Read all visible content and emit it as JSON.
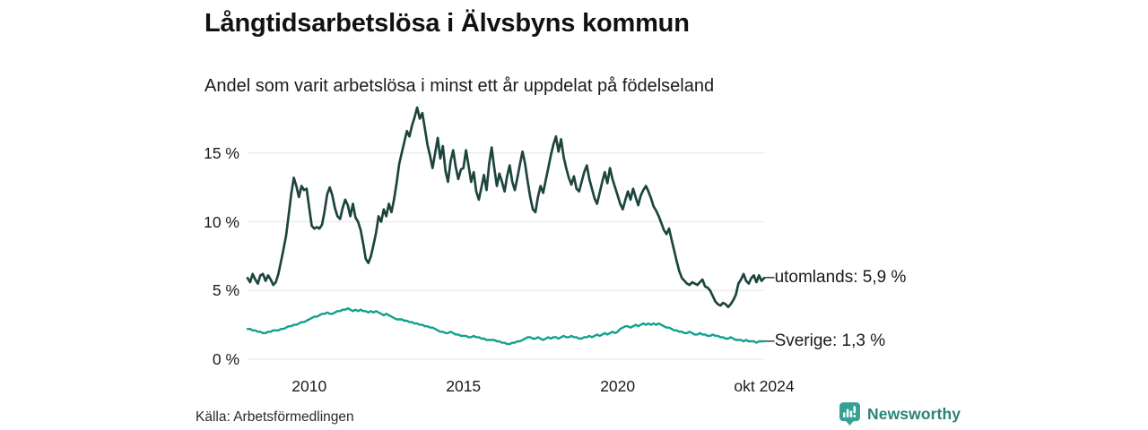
{
  "header": {
    "title": "Långtidsarbetslösa i Älvsbyns kommun",
    "subtitle": "Andel som varit arbetslösa i minst ett år uppdelat på födelseland"
  },
  "chart_data": {
    "type": "line",
    "unit": "%",
    "x_frequency": "monthly",
    "x_start": "2008-01",
    "x_end": "2024-10",
    "grid": "horizontal",
    "legend_position": "right-end-labels",
    "ylim": [
      0,
      19
    ],
    "yticks": [
      {
        "value": 0,
        "label": "0 %"
      },
      {
        "value": 5,
        "label": "5 %"
      },
      {
        "value": 10,
        "label": "10 %"
      },
      {
        "value": 15,
        "label": "15 %"
      }
    ],
    "xticks": [
      {
        "month_index": 24,
        "label": "2010"
      },
      {
        "month_index": 84,
        "label": "2015"
      },
      {
        "month_index": 144,
        "label": "2020"
      },
      {
        "month_index": 201,
        "label": "okt 2024"
      }
    ],
    "series": [
      {
        "name": "utomlands",
        "color": "#1d453e",
        "stroke_width": 2.7,
        "end_label": "–utomlands: 5,9 %",
        "last_value_label": "5,9 %",
        "values": [
          5.9,
          5.6,
          6.2,
          5.8,
          5.5,
          6.1,
          6.2,
          5.7,
          6.1,
          5.8,
          5.4,
          5.6,
          6.2,
          7.1,
          8.0,
          9.0,
          10.5,
          12.0,
          13.2,
          12.6,
          11.8,
          12.6,
          12.3,
          12.4,
          11.0,
          9.7,
          9.5,
          9.6,
          9.5,
          9.8,
          10.8,
          12.0,
          12.5,
          11.9,
          11.0,
          10.4,
          10.2,
          11.0,
          11.6,
          11.2,
          10.4,
          11.3,
          10.3,
          10.0,
          9.4,
          8.4,
          7.3,
          7.0,
          7.5,
          8.3,
          9.2,
          10.4,
          10.0,
          10.9,
          10.4,
          11.3,
          10.7,
          11.6,
          12.8,
          14.2,
          15.0,
          15.8,
          16.6,
          16.2,
          17.0,
          17.6,
          18.3,
          17.5,
          17.9,
          16.8,
          15.6,
          14.8,
          13.9,
          15.0,
          16.1,
          14.6,
          15.5,
          13.7,
          12.9,
          14.4,
          15.2,
          14.0,
          13.1,
          13.8,
          13.9,
          15.2,
          14.1,
          12.9,
          13.6,
          12.2,
          11.6,
          12.5,
          13.4,
          12.3,
          14.2,
          15.4,
          13.9,
          12.6,
          13.5,
          12.9,
          12.2,
          13.3,
          14.1,
          12.9,
          12.3,
          13.2,
          14.2,
          15.1,
          14.2,
          12.9,
          11.8,
          10.9,
          10.7,
          11.8,
          12.6,
          12.1,
          13.0,
          13.9,
          14.8,
          15.6,
          16.2,
          15.1,
          16.0,
          14.7,
          13.9,
          13.2,
          12.7,
          13.3,
          12.4,
          12.2,
          12.9,
          13.6,
          14.1,
          13.1,
          12.4,
          11.7,
          11.3,
          12.1,
          12.9,
          13.6,
          12.8,
          13.9,
          13.1,
          12.5,
          11.9,
          11.3,
          10.9,
          11.6,
          12.2,
          11.6,
          12.4,
          11.8,
          11.2,
          11.9,
          12.3,
          12.6,
          12.2,
          11.7,
          11.1,
          10.8,
          10.4,
          9.9,
          9.4,
          9.1,
          9.5,
          8.7,
          7.9,
          7.1,
          6.4,
          5.9,
          5.7,
          5.5,
          5.4,
          5.6,
          5.5,
          5.4,
          5.6,
          5.8,
          5.3,
          5.2,
          5.0,
          4.6,
          4.2,
          4.0,
          3.9,
          4.1,
          4.0,
          3.8,
          4.0,
          4.3,
          4.7,
          5.5,
          5.8,
          6.2,
          5.7,
          5.5,
          5.9,
          6.1,
          5.6,
          6.1,
          5.7,
          5.9
        ]
      },
      {
        "name": "Sverige",
        "color": "#12a08e",
        "stroke_width": 2.4,
        "end_label": "–Sverige: 1,3 %",
        "last_value_label": "1,3 %",
        "values": [
          2.2,
          2.2,
          2.1,
          2.1,
          2.0,
          2.0,
          1.9,
          1.9,
          2.0,
          2.0,
          2.1,
          2.1,
          2.1,
          2.2,
          2.2,
          2.3,
          2.4,
          2.4,
          2.5,
          2.5,
          2.6,
          2.7,
          2.7,
          2.8,
          2.9,
          3.0,
          3.1,
          3.1,
          3.2,
          3.3,
          3.3,
          3.4,
          3.3,
          3.3,
          3.4,
          3.5,
          3.5,
          3.6,
          3.6,
          3.7,
          3.6,
          3.5,
          3.6,
          3.5,
          3.6,
          3.5,
          3.5,
          3.4,
          3.5,
          3.4,
          3.5,
          3.4,
          3.3,
          3.2,
          3.3,
          3.2,
          3.1,
          3.0,
          2.9,
          2.9,
          2.9,
          2.8,
          2.8,
          2.7,
          2.7,
          2.6,
          2.6,
          2.5,
          2.5,
          2.4,
          2.4,
          2.3,
          2.3,
          2.2,
          2.1,
          2.0,
          2.0,
          1.9,
          1.9,
          2.0,
          1.9,
          1.8,
          1.8,
          1.7,
          1.7,
          1.7,
          1.6,
          1.6,
          1.7,
          1.6,
          1.6,
          1.5,
          1.5,
          1.4,
          1.4,
          1.4,
          1.4,
          1.3,
          1.3,
          1.2,
          1.2,
          1.1,
          1.1,
          1.2,
          1.2,
          1.3,
          1.3,
          1.4,
          1.5,
          1.6,
          1.6,
          1.5,
          1.5,
          1.6,
          1.5,
          1.4,
          1.5,
          1.6,
          1.5,
          1.6,
          1.6,
          1.5,
          1.6,
          1.7,
          1.6,
          1.6,
          1.7,
          1.6,
          1.6,
          1.5,
          1.5,
          1.6,
          1.6,
          1.7,
          1.6,
          1.7,
          1.8,
          1.7,
          1.8,
          1.9,
          1.8,
          1.9,
          2.0,
          1.9,
          2.0,
          2.2,
          2.3,
          2.4,
          2.4,
          2.3,
          2.4,
          2.5,
          2.4,
          2.5,
          2.6,
          2.5,
          2.6,
          2.5,
          2.6,
          2.5,
          2.6,
          2.5,
          2.4,
          2.3,
          2.3,
          2.2,
          2.1,
          2.1,
          2.0,
          2.0,
          1.9,
          1.9,
          2.0,
          1.9,
          1.8,
          1.8,
          1.9,
          1.8,
          1.8,
          1.7,
          1.7,
          1.8,
          1.7,
          1.7,
          1.6,
          1.6,
          1.5,
          1.5,
          1.6,
          1.5,
          1.4,
          1.4,
          1.4,
          1.3,
          1.4,
          1.3,
          1.3,
          1.3,
          1.2,
          1.3,
          1.3,
          1.3
        ]
      }
    ],
    "style": {
      "gridline_color": "#e7e9ec",
      "text_color": "#1a1a1a",
      "background": "#ffffff"
    }
  },
  "footer": {
    "source": "Källa: Arbetsförmedlingen",
    "brand": "Newsworthy",
    "brand_color": "#2b827b",
    "brand_icon_color": "#35a093"
  }
}
